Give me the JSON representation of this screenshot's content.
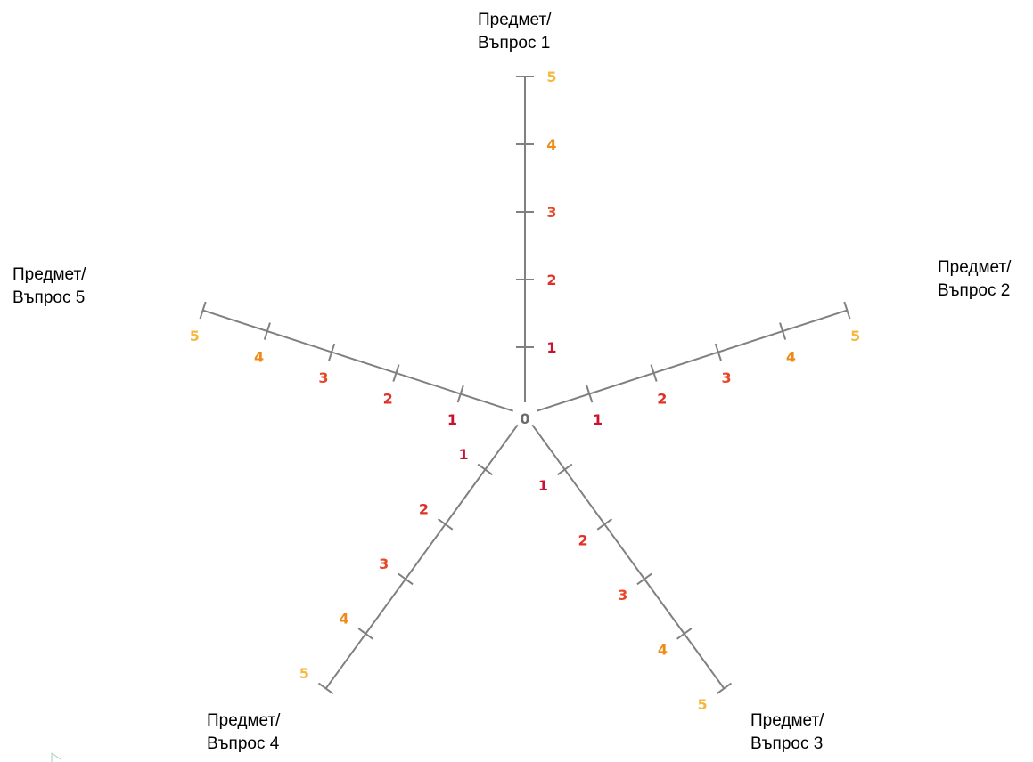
{
  "origin_label": "0",
  "scale": [
    "1",
    "2",
    "3",
    "4",
    "5"
  ],
  "colors": {
    "axis_line": "#808080",
    "origin": "#6b6b6b",
    "scale": [
      "#cc1030",
      "#e0302a",
      "#e8472a",
      "#ee8a18",
      "#f5b840"
    ]
  },
  "axes": [
    {
      "title_line1": "Предмет/",
      "title_line2": "Въпрос 1"
    },
    {
      "title_line1": "Предмет/",
      "title_line2": "Въпрос 2"
    },
    {
      "title_line1": "Предмет/",
      "title_line2": "Въпрос 3"
    },
    {
      "title_line1": "Предмет/",
      "title_line2": "Въпрос 4"
    },
    {
      "title_line1": "Предмет/",
      "title_line2": "Въпрос 5"
    }
  ]
}
